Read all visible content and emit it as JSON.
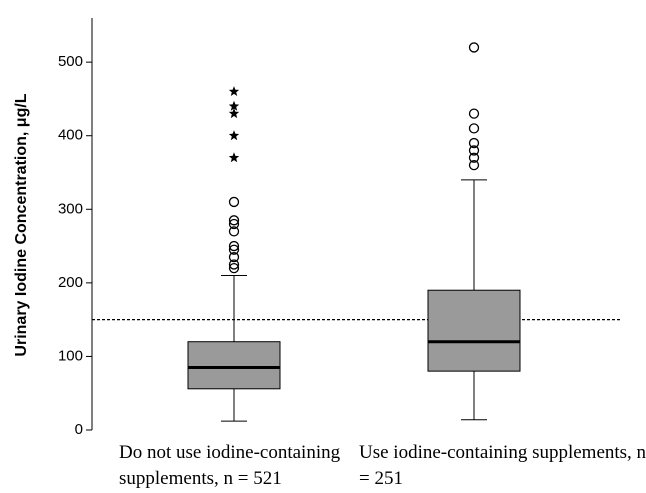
{
  "chart_data": {
    "type": "box",
    "y_label": "Urinary Iodine Concentration, μg/L",
    "categories": [
      "Do not use iodine-containing supplements, n = 521",
      "Use iodine-containing supplements, n = 251"
    ],
    "boxes": [
      {
        "whisker_low": 12,
        "q1": 56,
        "median": 85,
        "q3": 120,
        "whisker_high": 210,
        "outliers": [
          220,
          225,
          235,
          245,
          250,
          270,
          280,
          285,
          310
        ],
        "extremes": [
          370,
          400,
          430,
          440,
          460
        ]
      },
      {
        "whisker_low": 14,
        "q1": 80,
        "median": 120,
        "q3": 190,
        "whisker_high": 340,
        "outliers": [
          360,
          370,
          380,
          390,
          410,
          430,
          520
        ],
        "extremes": []
      }
    ],
    "box_color": "#9a9a9a",
    "reference_line": 150,
    "ylim": [
      0,
      560
    ],
    "yticks": [
      0,
      100,
      200,
      300,
      400,
      500
    ]
  }
}
